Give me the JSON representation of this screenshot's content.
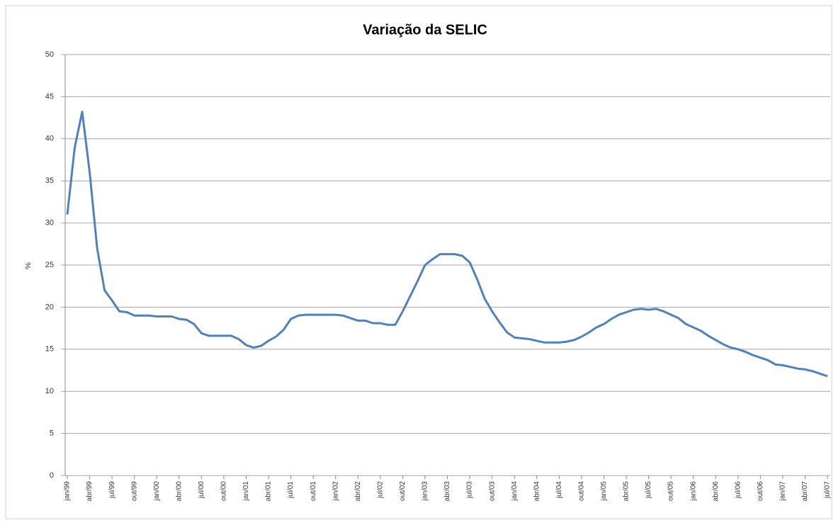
{
  "chart_data": {
    "type": "line",
    "title": "Variação da SELIC",
    "y_label": "%",
    "categories": [
      "jan/99",
      null,
      null,
      "abr/99",
      null,
      null,
      "jul/99",
      null,
      null,
      "out/99",
      null,
      null,
      "jan/00",
      null,
      null,
      "abr/00",
      null,
      null,
      "jul/00",
      null,
      null,
      "out/00",
      null,
      null,
      "jan/01",
      null,
      null,
      "abr/01",
      null,
      null,
      "jul/01",
      null,
      null,
      "out/01",
      null,
      null,
      "jan/02",
      null,
      null,
      "abr/02",
      null,
      null,
      "jul/02",
      null,
      null,
      "out/02",
      null,
      null,
      "jan/03",
      null,
      null,
      "abr/03",
      null,
      null,
      "jul/03",
      null,
      null,
      "out/03",
      null,
      null,
      "jan/04",
      null,
      null,
      "abr/04",
      null,
      null,
      "jul/04",
      null,
      null,
      "out/04",
      null,
      null,
      "jan/05",
      null,
      null,
      "abr/05",
      null,
      null,
      "jul/05",
      null,
      null,
      "out/05",
      null,
      null,
      "jan/06",
      null,
      null,
      "abr/06",
      null,
      null,
      "jul/06",
      null,
      null,
      "out/06",
      null,
      null,
      "jan/07",
      null,
      null,
      "abr/07",
      null,
      null,
      "jul/07"
    ],
    "values": [
      31.0,
      39.0,
      43.2,
      36.0,
      27.0,
      22.0,
      20.8,
      19.5,
      19.4,
      19.0,
      19.0,
      19.0,
      18.9,
      18.9,
      18.9,
      18.6,
      18.5,
      18.0,
      16.9,
      16.6,
      16.6,
      16.6,
      16.6,
      16.2,
      15.5,
      15.2,
      15.4,
      16.0,
      16.5,
      17.3,
      18.6,
      19.0,
      19.1,
      19.1,
      19.1,
      19.1,
      19.1,
      19.0,
      18.7,
      18.4,
      18.4,
      18.1,
      18.1,
      17.9,
      17.9,
      19.5,
      21.3,
      23.1,
      25.0,
      25.7,
      26.3,
      26.3,
      26.3,
      26.1,
      25.3,
      23.3,
      21.0,
      19.5,
      18.2,
      17.0,
      16.4,
      16.3,
      16.2,
      16.0,
      15.8,
      15.8,
      15.8,
      15.9,
      16.1,
      16.5,
      17.0,
      17.6,
      18.0,
      18.6,
      19.1,
      19.4,
      19.7,
      19.8,
      19.7,
      19.8,
      19.5,
      19.1,
      18.7,
      18.0,
      17.6,
      17.2,
      16.6,
      16.1,
      15.6,
      15.2,
      15.0,
      14.7,
      14.3,
      14.0,
      13.7,
      13.2,
      13.1,
      12.9,
      12.7,
      12.6,
      12.4,
      12.1,
      11.8
    ],
    "color": "#4f81bd",
    "ylim": [
      0,
      50
    ],
    "yticks": [
      0,
      5,
      10,
      15,
      20,
      25,
      30,
      35,
      40,
      45,
      50
    ],
    "grid": true
  }
}
